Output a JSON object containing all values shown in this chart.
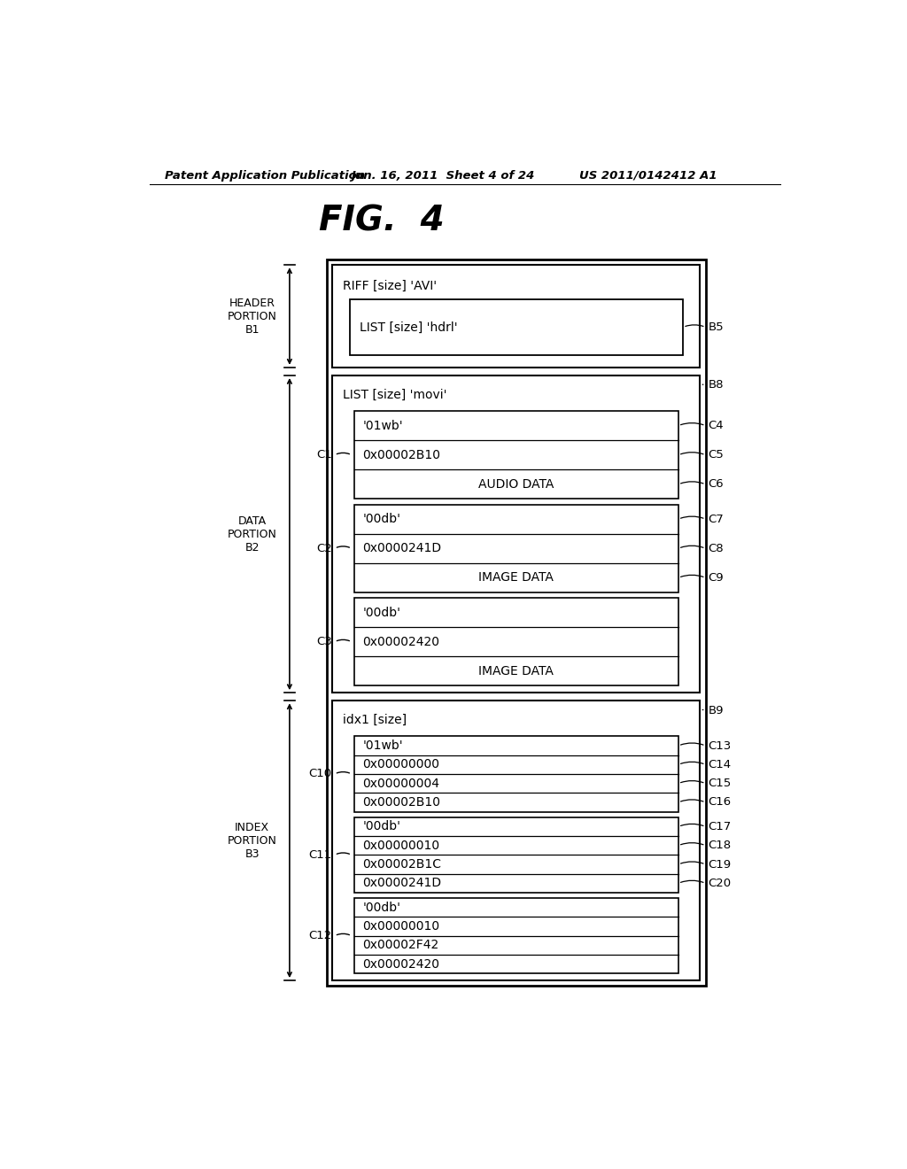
{
  "bg_color": "#ffffff",
  "header_text": "Patent Application Publication",
  "header_date": "Jun. 16, 2011  Sheet 4 of 24",
  "header_patent": "US 2011/0142412 A1",
  "title": "FIG.  4",
  "riff_label": "RIFF [size] 'AVI'",
  "b5_label": "LIST [size] 'hdrl'",
  "b8_label": "LIST [size] 'movi'",
  "b9_label": "idx1 [size]",
  "c1_rows": [
    "'01wb'",
    "0x00002B10",
    "AUDIO DATA"
  ],
  "c1_tags": [
    "C4",
    "C5",
    "C6"
  ],
  "c2_rows": [
    "'00db'",
    "0x0000241D",
    "IMAGE DATA"
  ],
  "c2_tags": [
    "C7",
    "C8",
    "C9"
  ],
  "c3_rows": [
    "'00db'",
    "0x00002420",
    "IMAGE DATA"
  ],
  "c10_rows": [
    "'01wb'",
    "0x00000000",
    "0x00000004",
    "0x00002B10"
  ],
  "c10_tags": [
    "C13",
    "C14",
    "C15",
    "C16"
  ],
  "c11_rows": [
    "'00db'",
    "0x00000010",
    "0x00002B1C",
    "0x0000241D"
  ],
  "c11_tags": [
    "C17",
    "C18",
    "C19",
    "C20"
  ],
  "c12_rows": [
    "'00db'",
    "0x00000010",
    "0x00002F42",
    "0x00002420"
  ]
}
